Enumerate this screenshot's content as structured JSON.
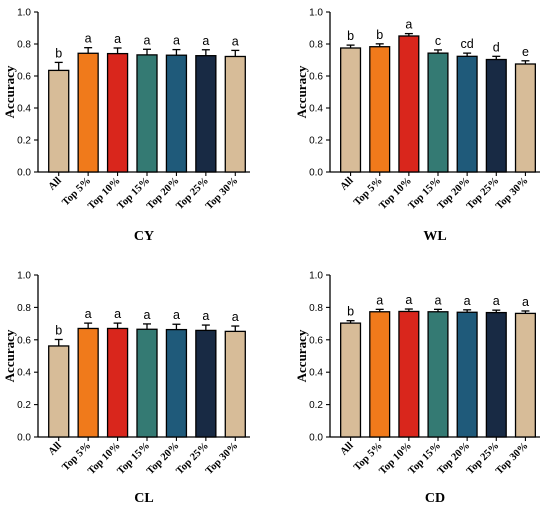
{
  "colors": [
    "#d7bc98",
    "#f07a1b",
    "#d9261c",
    "#347a73",
    "#1f5a7a",
    "#182a44",
    "#d7bc98"
  ],
  "chart_data": [
    {
      "type": "bar",
      "title": "CY",
      "ylabel": "Accuracy",
      "ylim": [
        0,
        1.0
      ],
      "yticks": [
        "0.0",
        "0.2",
        "0.4",
        "0.6",
        "0.8",
        "1.0"
      ],
      "categories": [
        "All",
        "Top 5%",
        "Top 10%",
        "Top 15%",
        "Top 20%",
        "Top 25%",
        "Top 30%"
      ],
      "values": [
        0.635,
        0.742,
        0.74,
        0.732,
        0.73,
        0.727,
        0.722
      ],
      "errors": [
        0.05,
        0.035,
        0.035,
        0.035,
        0.035,
        0.037,
        0.038
      ],
      "labels": [
        "b",
        "a",
        "a",
        "a",
        "a",
        "a",
        "a"
      ]
    },
    {
      "type": "bar",
      "title": "WL",
      "ylabel": "Accuracy",
      "ylim": [
        0,
        1.0
      ],
      "yticks": [
        "0.0",
        "0.2",
        "0.4",
        "0.6",
        "0.8",
        "1.0"
      ],
      "categories": [
        "All",
        "Top 5%",
        "Top 10%",
        "Top 15%",
        "Top 20%",
        "Top 25%",
        "Top 30%"
      ],
      "values": [
        0.775,
        0.783,
        0.85,
        0.743,
        0.723,
        0.703,
        0.675
      ],
      "errors": [
        0.018,
        0.018,
        0.015,
        0.02,
        0.02,
        0.02,
        0.02
      ],
      "labels": [
        "b",
        "b",
        "a",
        "c",
        "cd",
        "d",
        "e"
      ]
    },
    {
      "type": "bar",
      "title": "CL",
      "ylabel": "Accuracy",
      "ylim": [
        0,
        1.0
      ],
      "yticks": [
        "0.0",
        "0.2",
        "0.4",
        "0.6",
        "0.8",
        "1.0"
      ],
      "categories": [
        "All",
        "Top 5%",
        "Top 10%",
        "Top 15%",
        "Top 20%",
        "Top 25%",
        "Top 30%"
      ],
      "values": [
        0.562,
        0.67,
        0.67,
        0.665,
        0.663,
        0.658,
        0.652
      ],
      "errors": [
        0.04,
        0.033,
        0.033,
        0.033,
        0.033,
        0.033,
        0.033
      ],
      "labels": [
        "b",
        "a",
        "a",
        "a",
        "a",
        "a",
        "a"
      ]
    },
    {
      "type": "bar",
      "title": "CD",
      "ylabel": "Accuracy",
      "ylim": [
        0,
        1.0
      ],
      "yticks": [
        "0.0",
        "0.2",
        "0.4",
        "0.6",
        "0.8",
        "1.0"
      ],
      "categories": [
        "All",
        "Top 5%",
        "Top 10%",
        "Top 15%",
        "Top 20%",
        "Top 25%",
        "Top 30%"
      ],
      "values": [
        0.703,
        0.773,
        0.775,
        0.773,
        0.77,
        0.768,
        0.763
      ],
      "errors": [
        0.015,
        0.015,
        0.015,
        0.015,
        0.015,
        0.015,
        0.015
      ],
      "labels": [
        "b",
        "a",
        "a",
        "a",
        "a",
        "a",
        "a"
      ]
    }
  ]
}
